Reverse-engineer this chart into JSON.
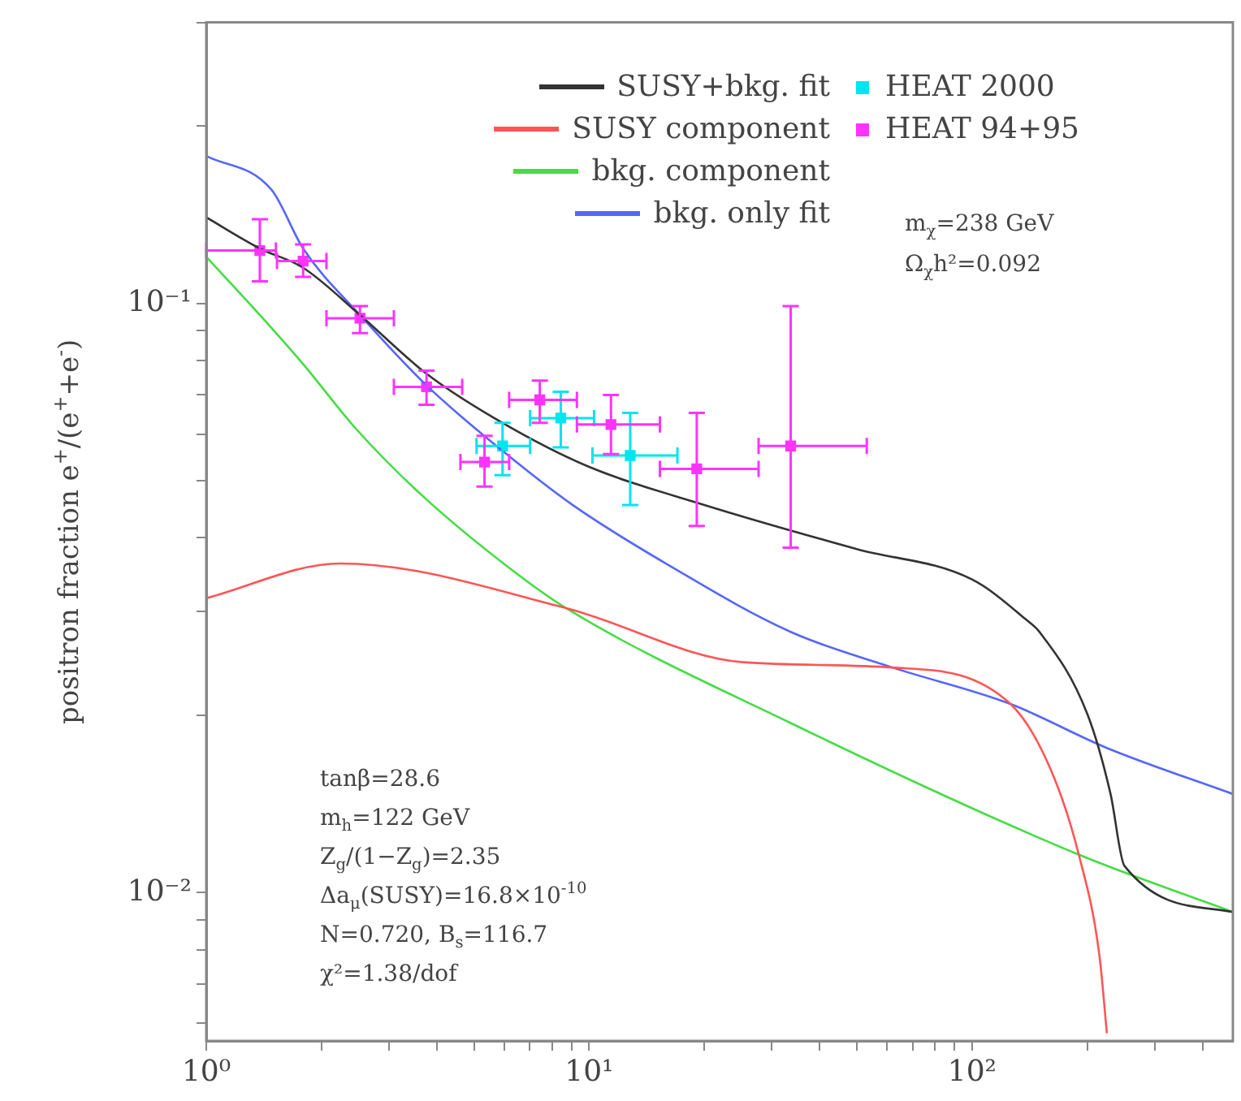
{
  "chart_data": {
    "type": "line",
    "ylabel": "positron fraction e$^{+}$/(e$^{+}$+e$^{-}$)",
    "log": "xy",
    "grid": false,
    "legend": "top",
    "marker": "none",
    "line_style": "solid",
    "xlim": [
      1,
      480
    ],
    "ylim": [
      0.0056,
      0.3
    ],
    "xticks": [
      {
        "value": 1,
        "label": "10⁰"
      },
      {
        "value": 2,
        "label": null
      },
      {
        "value": 3,
        "label": null
      },
      {
        "value": 4,
        "label": null
      },
      {
        "value": 5,
        "label": null
      },
      {
        "value": 6,
        "label": null
      },
      {
        "value": 7,
        "label": null
      },
      {
        "value": 8,
        "label": null
      },
      {
        "value": 9,
        "label": null
      },
      {
        "value": 10,
        "label": "10¹"
      },
      {
        "value": 20,
        "label": null
      },
      {
        "value": 30,
        "label": null
      },
      {
        "value": 40,
        "label": null
      },
      {
        "value": 50,
        "label": null
      },
      {
        "value": 60,
        "label": null
      },
      {
        "value": 70,
        "label": null
      },
      {
        "value": 80,
        "label": null
      },
      {
        "value": 90,
        "label": null
      },
      {
        "value": 100,
        "label": "10²"
      },
      {
        "value": 200,
        "label": null
      },
      {
        "value": 300,
        "label": null
      },
      {
        "value": 400,
        "label": null
      }
    ],
    "yticks": [
      {
        "value": 0.006,
        "label": null
      },
      {
        "value": 0.007,
        "label": null
      },
      {
        "value": 0.008,
        "label": null
      },
      {
        "value": 0.009,
        "label": null
      },
      {
        "value": 0.01,
        "label": "10⁻²"
      },
      {
        "value": 0.02,
        "label": null
      },
      {
        "value": 0.03,
        "label": null
      },
      {
        "value": 0.04,
        "label": null
      },
      {
        "value": 0.05,
        "label": null
      },
      {
        "value": 0.06,
        "label": null
      },
      {
        "value": 0.07,
        "label": null
      },
      {
        "value": 0.08,
        "label": null
      },
      {
        "value": 0.09,
        "label": null
      },
      {
        "value": 0.1,
        "label": "10⁻¹"
      },
      {
        "value": 0.2,
        "label": null
      },
      {
        "value": 0.3,
        "label": null
      }
    ],
    "series": [
      {
        "name": "SUSY+bkg. fit",
        "color": "#333333",
        "x": [
          1,
          1.38,
          1.79,
          2.52,
          3.76,
          5.94,
          10,
          20,
          50,
          100,
          139,
          150,
          200,
          230,
          250,
          480
        ],
        "values": [
          0.14,
          0.124,
          0.115,
          0.0956,
          0.076,
          0.0627,
          0.0528,
          0.0455,
          0.0383,
          0.034,
          0.029,
          0.0277,
          0.0201,
          0.0147,
          0.0111,
          0.00927
        ]
      },
      {
        "name": "SUSY component",
        "color": "#ff5555",
        "x": [
          1,
          2.24,
          8.7,
          25.3,
          62,
          126,
          161,
          190,
          215,
          225
        ],
        "values": [
          0.0316,
          0.0362,
          0.0304,
          0.0246,
          0.0241,
          0.0209,
          0.0161,
          0.0116,
          0.00784,
          0.00577
        ]
      },
      {
        "name": "bkg. component",
        "color": "#44dd44",
        "x": [
          1,
          1.38,
          1.79,
          2.47,
          3.65,
          6.07,
          8.7,
          33.6,
          190,
          480
        ],
        "values": [
          0.12,
          0.0956,
          0.0789,
          0.0611,
          0.0473,
          0.0359,
          0.0304,
          0.0194,
          0.0116,
          0.00927
        ]
      },
      {
        "name": "bkg. only fit",
        "color": "#5566ff",
        "x": [
          1,
          1.48,
          1.79,
          2.52,
          3.76,
          5.94,
          9.05,
          16.2,
          33.6,
          62,
          126,
          225,
          480
        ],
        "values": [
          0.178,
          0.156,
          0.124,
          0.0956,
          0.0726,
          0.0562,
          0.0455,
          0.0359,
          0.0277,
          0.0241,
          0.0209,
          0.0176,
          0.0147
        ]
      },
      {
        "name": "HEAT 2000",
        "type": "scatter",
        "color": "#00e5ee",
        "marker": "square",
        "x": [
          5.94,
          8.43,
          12.8
        ],
        "values": [
          0.0573,
          0.0639,
          0.0552
        ],
        "errors": [
          [
            0.0511,
            0.0627
          ],
          [
            0.057,
            0.0708
          ],
          [
            0.0455,
            0.0652
          ]
        ],
        "xerrors": [
          [
            5.08,
            7.01
          ],
          [
            7.01,
            10.3
          ],
          [
            10.2,
            17
          ]
        ]
      },
      {
        "name": "HEAT 94+95",
        "type": "scatter",
        "color": "#ff33ff",
        "marker": "square",
        "x": [
          1.38,
          1.79,
          2.52,
          3.76,
          5.33,
          7.43,
          11.4,
          19.1,
          33.6
        ],
        "values": [
          0.123,
          0.118,
          0.0944,
          0.0722,
          0.0538,
          0.0686,
          0.0623,
          0.0524,
          0.0573
        ],
        "errors": [
          [
            0.109,
            0.139
          ],
          [
            0.111,
            0.126
          ],
          [
            0.0891,
            0.099
          ],
          [
            0.0673,
            0.0769
          ],
          [
            0.0489,
            0.0596
          ],
          [
            0.0627,
            0.074
          ],
          [
            0.0555,
            0.0699
          ],
          [
            0.0419,
            0.0652
          ],
          [
            0.0385,
            0.099
          ]
        ],
        "xerrors": [
          [
            1,
            1.52
          ],
          [
            1.53,
            2.06
          ],
          [
            2.06,
            3.09
          ],
          [
            3.09,
            4.66
          ],
          [
            4.61,
            6.18
          ],
          [
            6.18,
            9.29
          ],
          [
            9.29,
            15.3
          ],
          [
            15.3,
            27.7
          ],
          [
            27.7,
            53.1
          ]
        ]
      }
    ],
    "annotations": [
      "m$_{χ}$=238 GeV",
      "Ω$_{χ}$h²=0.092",
      "tanβ=28.6",
      "m$_{h}$=122 GeV",
      "Z$_{g}$/(1−Z$_{g}$)=2.35",
      "Δa$_{μ}$(SUSY)=16.8×10$^{-10}$",
      "N=0.720, B$_{s}$=116.7",
      "χ²=1.38/dof"
    ]
  }
}
